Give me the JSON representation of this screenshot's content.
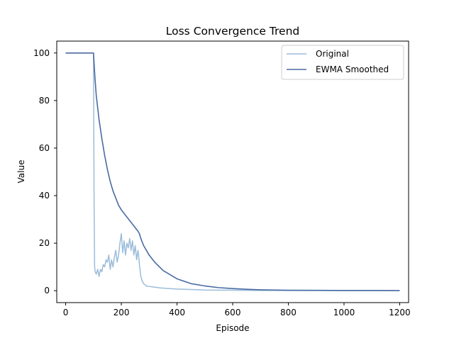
{
  "chart_data": {
    "type": "line",
    "title": "Loss Convergence Trend",
    "xlabel": "Episode",
    "ylabel": "Value",
    "xlim": [
      -32,
      1232
    ],
    "ylim": [
      -5,
      105
    ],
    "x_ticks": [
      0,
      200,
      400,
      600,
      800,
      1000,
      1200
    ],
    "y_ticks": [
      0,
      20,
      40,
      60,
      80,
      100
    ],
    "grid": false,
    "legend_position": "top-right",
    "series": [
      {
        "name": "Original",
        "color": "#9bbcd9",
        "x": [
          0,
          100,
          102,
          104,
          106,
          110,
          115,
          120,
          125,
          130,
          135,
          140,
          145,
          150,
          155,
          160,
          165,
          170,
          175,
          180,
          185,
          190,
          195,
          200,
          205,
          210,
          215,
          220,
          225,
          230,
          235,
          240,
          245,
          250,
          255,
          260,
          262,
          265,
          270,
          275,
          280,
          285,
          290,
          300,
          320,
          340,
          360,
          400,
          450,
          500,
          600,
          700,
          800,
          1000,
          1200
        ],
        "values": [
          100,
          100,
          40,
          10,
          8,
          7,
          9,
          6,
          9,
          8,
          11,
          10,
          13,
          12,
          15,
          9,
          13,
          10,
          14,
          17,
          12,
          15,
          20,
          24,
          16,
          21,
          15,
          20,
          18,
          22,
          17,
          21,
          15,
          19,
          13,
          17,
          15,
          11,
          6,
          4,
          3,
          2.5,
          2,
          1.8,
          1.5,
          1.2,
          1.0,
          0.7,
          0.5,
          0.3,
          0.2,
          0.1,
          0.1,
          0.05,
          0.05
        ]
      },
      {
        "name": "EWMA Smoothed",
        "color": "#4a6ba3",
        "x": [
          0,
          100,
          105,
          110,
          120,
          130,
          140,
          150,
          160,
          170,
          180,
          190,
          200,
          210,
          220,
          230,
          240,
          250,
          260,
          265,
          270,
          280,
          300,
          320,
          350,
          400,
          450,
          500,
          550,
          600,
          650,
          700,
          800,
          900,
          1000,
          1100,
          1200
        ],
        "values": [
          100,
          100,
          90,
          82,
          72,
          64,
          57,
          51,
          46,
          42,
          39,
          36,
          34,
          32.5,
          31,
          29.5,
          28,
          26.5,
          25,
          24,
          22,
          19,
          15,
          12,
          8.5,
          5,
          3,
          2,
          1.3,
          0.9,
          0.6,
          0.4,
          0.2,
          0.15,
          0.1,
          0.08,
          0.05
        ]
      }
    ]
  }
}
